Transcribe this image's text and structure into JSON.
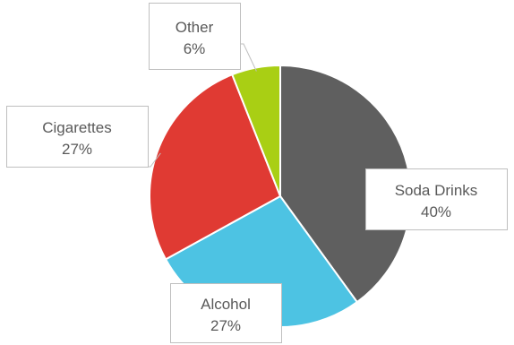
{
  "chart_data": {
    "type": "pie",
    "title": "",
    "slices": [
      {
        "label": "Soda Drinks",
        "value": 40,
        "value_label": "40%",
        "color": "#5f5f5f"
      },
      {
        "label": "Alcohol",
        "value": 27,
        "value_label": "27%",
        "color": "#4dc3e3"
      },
      {
        "label": "Cigarettes",
        "value": 27,
        "value_label": "27%",
        "color": "#e03a33"
      },
      {
        "label": "Other",
        "value": 6,
        "value_label": "6%",
        "color": "#a9cf14"
      }
    ],
    "legend": "none",
    "data_labels": "callouts"
  }
}
